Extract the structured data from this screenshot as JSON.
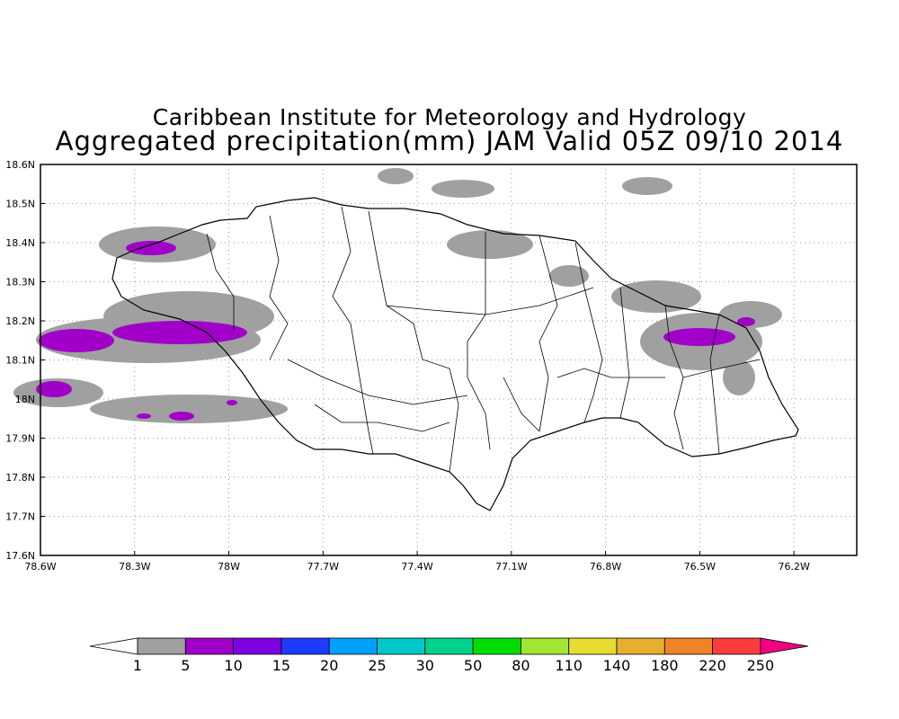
{
  "title": "Caribbean Institute for Meteorology and Hydrology",
  "subtitle": "Aggregated precipitation(mm) JAM Valid 05Z 09/10 2014",
  "map": {
    "region": "Jamaica",
    "lon_range": [
      -78.6,
      -76.0
    ],
    "lat_range": [
      17.6,
      18.6
    ],
    "lon_ticks": [
      "78.6W",
      "78.3W",
      "78W",
      "77.7W",
      "77.4W",
      "77.1W",
      "76.8W",
      "76.5W",
      "76.2W"
    ],
    "lat_ticks": [
      "18.6N",
      "18.5N",
      "18.4N",
      "18.3N",
      "18.2N",
      "18.1N",
      "18N",
      "17.9N",
      "17.8N",
      "17.7N",
      "17.6N"
    ],
    "grid": true,
    "colors": {
      "frame": "#000000",
      "grid": "#9a9a9a",
      "land_outline": "#000000"
    }
  },
  "colorbar": {
    "labels": [
      "1",
      "5",
      "10",
      "15",
      "20",
      "25",
      "30",
      "50",
      "80",
      "110",
      "140",
      "180",
      "220",
      "250"
    ],
    "colors": [
      "#a0a0a0",
      "#a000c8",
      "#7f00e0",
      "#1e3cff",
      "#00a0ff",
      "#00c8c8",
      "#00d28c",
      "#00dc00",
      "#a0e632",
      "#e6dc32",
      "#e6af2d",
      "#f08228",
      "#fa3c3c",
      "#f00082"
    ],
    "below_color": "#ffffff",
    "above_color": "#f00082"
  }
}
